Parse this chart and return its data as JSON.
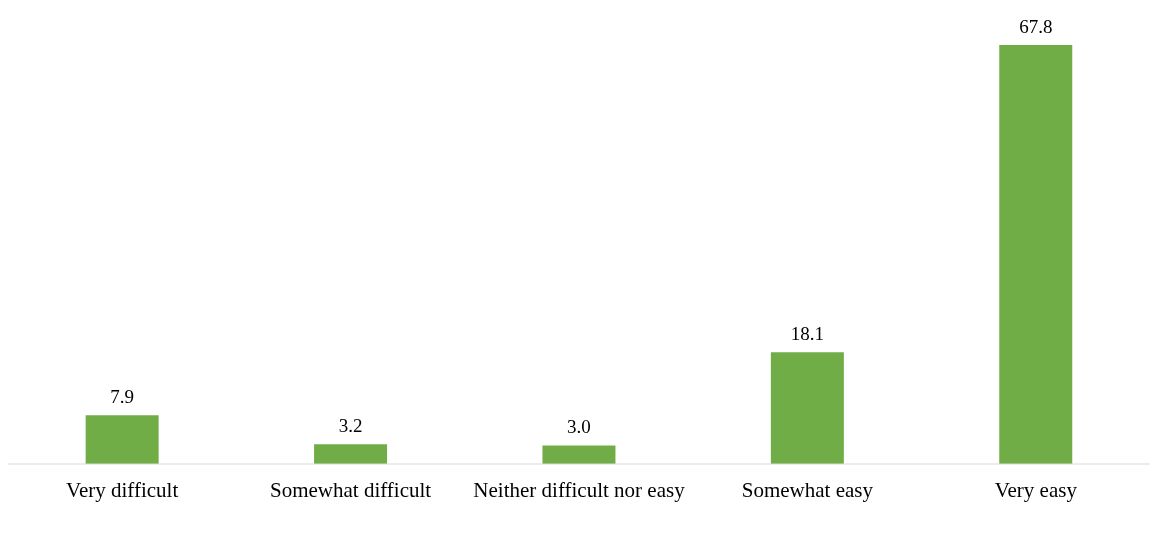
{
  "chart_data": {
    "type": "bar",
    "categories": [
      "Very difficult",
      "Somewhat difficult",
      "Neither difficult nor easy",
      "Somewhat easy",
      "Very easy"
    ],
    "values": [
      7.9,
      3.2,
      3.0,
      18.1,
      67.8
    ],
    "value_labels": [
      "7.9",
      "3.2",
      "3.0",
      "18.1",
      "67.8"
    ],
    "color": "#70ad47",
    "tick_labels": "x"
  }
}
